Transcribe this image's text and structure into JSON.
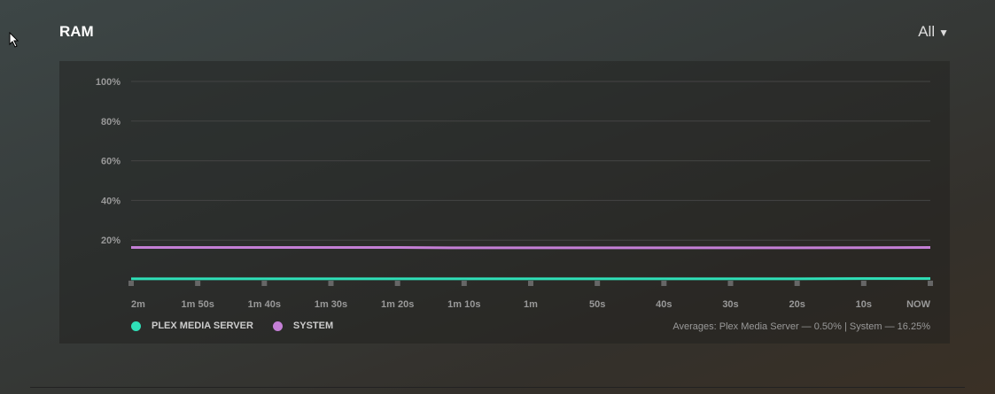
{
  "header": {
    "title": "RAM",
    "range_label": "All"
  },
  "chart_data": {
    "type": "line",
    "title": "RAM",
    "x": [
      "2m",
      "1m 50s",
      "1m 40s",
      "1m 30s",
      "1m 20s",
      "1m 10s",
      "1m",
      "50s",
      "40s",
      "30s",
      "20s",
      "10s",
      "NOW"
    ],
    "y_ticks": [
      "100%",
      "80%",
      "60%",
      "40%",
      "20%"
    ],
    "ylim": [
      0,
      100
    ],
    "grid": true,
    "series": [
      {
        "name": "PLEX MEDIA SERVER",
        "color": "#2fe0b8",
        "values": [
          0.5,
          0.5,
          0.5,
          0.5,
          0.5,
          0.5,
          0.5,
          0.5,
          0.5,
          0.5,
          0.5,
          0.6,
          0.6
        ]
      },
      {
        "name": "SYSTEM",
        "color": "#c47fd6",
        "values": [
          16.3,
          16.3,
          16.3,
          16.3,
          16.3,
          16.1,
          16.1,
          16.1,
          16.1,
          16.1,
          16.1,
          16.2,
          16.3
        ]
      }
    ],
    "legend_position": "bottom-left",
    "averages_text": "Averages: Plex Media Server — 0.50% | System — 16.25%"
  }
}
